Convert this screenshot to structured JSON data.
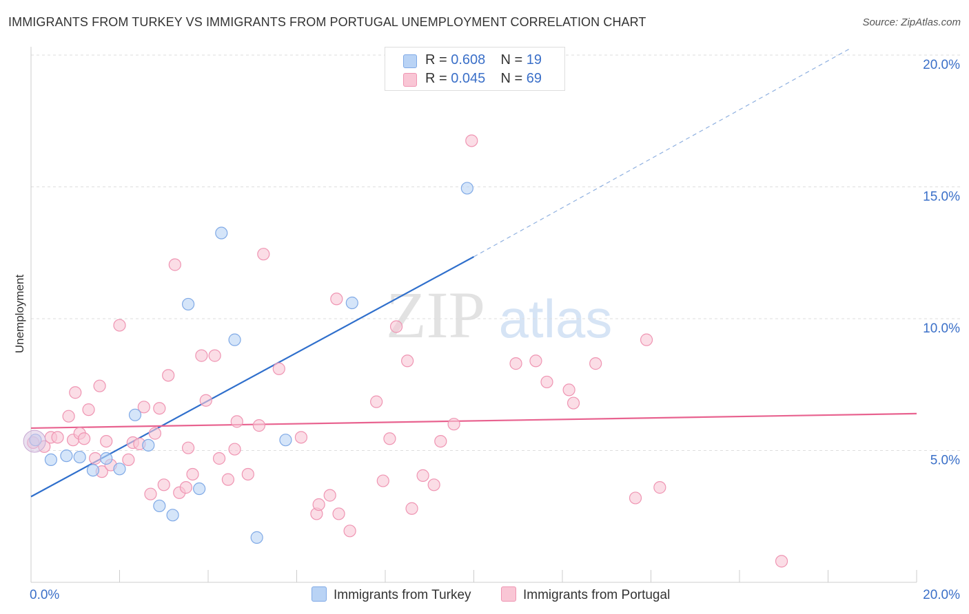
{
  "title": "IMMIGRANTS FROM TURKEY VS IMMIGRANTS FROM PORTUGAL UNEMPLOYMENT CORRELATION CHART",
  "source": "Source: ZipAtlas.com",
  "watermark": {
    "zip": "ZIP",
    "atlas": "atlas"
  },
  "legend": {
    "r_label": "R =",
    "n_label": "N =",
    "rows": [
      {
        "r": "0.608",
        "n": "19",
        "fill": "#b9d3f5",
        "stroke": "#7fa9e6"
      },
      {
        "r": "0.045",
        "n": "69",
        "fill": "#f9c6d5",
        "stroke": "#ef94b2"
      }
    ]
  },
  "chart_data": {
    "type": "scatter",
    "ylabel": "Unemployment",
    "xlim": [
      0,
      20
    ],
    "ylim": [
      0,
      20
    ],
    "x_tick_labels": [
      "0.0%",
      "20.0%"
    ],
    "y_ticks": [
      5,
      10,
      15,
      20
    ],
    "y_tick_labels": [
      "5.0%",
      "10.0%",
      "15.0%",
      "20.0%"
    ],
    "grid": "dashed horizontal",
    "series": [
      {
        "name": "Immigrants from Turkey",
        "color": "#7fa9e6",
        "fill": "#b9d3f5",
        "line_color": "#2f6fcc",
        "points": [
          [
            0.1,
            5.4
          ],
          [
            0.45,
            4.65
          ],
          [
            0.8,
            4.8
          ],
          [
            1.1,
            4.75
          ],
          [
            1.4,
            4.25
          ],
          [
            1.7,
            4.7
          ],
          [
            2.0,
            4.3
          ],
          [
            2.35,
            6.35
          ],
          [
            2.65,
            5.2
          ],
          [
            2.9,
            2.9
          ],
          [
            3.2,
            2.55
          ],
          [
            3.55,
            10.55
          ],
          [
            3.8,
            3.55
          ],
          [
            4.3,
            13.25
          ],
          [
            4.6,
            9.2
          ],
          [
            5.1,
            1.7
          ],
          [
            5.75,
            5.4
          ],
          [
            7.25,
            10.6
          ],
          [
            9.85,
            14.95
          ]
        ],
        "trend": {
          "x0": 0,
          "y0": 3.25,
          "x1": 10.0,
          "y1": 12.35,
          "dash_to_x": 18.5,
          "dash_to_y": 20.25
        }
      },
      {
        "name": "Immigrants from Portugal",
        "color": "#ef94b2",
        "fill": "#f9c6d5",
        "line_color": "#e8628f",
        "points": [
          [
            0.05,
            5.3
          ],
          [
            0.3,
            5.15
          ],
          [
            0.45,
            5.5
          ],
          [
            0.6,
            5.5
          ],
          [
            0.85,
            6.3
          ],
          [
            0.95,
            5.4
          ],
          [
            1.0,
            7.2
          ],
          [
            1.1,
            5.65
          ],
          [
            1.2,
            5.45
          ],
          [
            1.3,
            6.55
          ],
          [
            1.45,
            4.7
          ],
          [
            1.55,
            7.45
          ],
          [
            1.6,
            4.2
          ],
          [
            1.7,
            5.35
          ],
          [
            1.8,
            4.45
          ],
          [
            2.0,
            9.75
          ],
          [
            2.2,
            4.65
          ],
          [
            2.3,
            5.3
          ],
          [
            2.45,
            5.25
          ],
          [
            2.55,
            6.65
          ],
          [
            2.7,
            3.35
          ],
          [
            2.8,
            5.65
          ],
          [
            2.9,
            6.6
          ],
          [
            3.0,
            3.7
          ],
          [
            3.1,
            7.85
          ],
          [
            3.25,
            12.05
          ],
          [
            3.35,
            3.4
          ],
          [
            3.5,
            3.6
          ],
          [
            3.55,
            5.1
          ],
          [
            3.65,
            4.1
          ],
          [
            3.85,
            8.6
          ],
          [
            3.95,
            6.9
          ],
          [
            4.15,
            8.6
          ],
          [
            4.25,
            4.7
          ],
          [
            4.45,
            3.9
          ],
          [
            4.6,
            5.05
          ],
          [
            4.65,
            6.1
          ],
          [
            4.9,
            4.1
          ],
          [
            5.15,
            5.95
          ],
          [
            5.25,
            12.45
          ],
          [
            5.6,
            8.1
          ],
          [
            6.1,
            5.5
          ],
          [
            6.45,
            2.6
          ],
          [
            6.5,
            2.95
          ],
          [
            6.75,
            3.3
          ],
          [
            6.9,
            10.75
          ],
          [
            6.95,
            2.6
          ],
          [
            7.2,
            1.95
          ],
          [
            7.8,
            6.85
          ],
          [
            7.95,
            3.85
          ],
          [
            8.1,
            5.45
          ],
          [
            8.25,
            9.7
          ],
          [
            8.5,
            8.4
          ],
          [
            8.6,
            2.8
          ],
          [
            8.85,
            4.05
          ],
          [
            9.1,
            3.7
          ],
          [
            9.25,
            5.35
          ],
          [
            9.55,
            6.0
          ],
          [
            9.95,
            16.75
          ],
          [
            10.95,
            8.3
          ],
          [
            11.4,
            8.4
          ],
          [
            11.65,
            7.6
          ],
          [
            12.15,
            7.3
          ],
          [
            12.25,
            6.8
          ],
          [
            12.75,
            8.3
          ],
          [
            13.65,
            3.2
          ],
          [
            13.9,
            9.2
          ],
          [
            14.2,
            3.6
          ],
          [
            16.95,
            0.8
          ]
        ],
        "trend": {
          "x0": 0,
          "y0": 5.85,
          "x1": 20.0,
          "y1": 6.4
        }
      }
    ]
  }
}
